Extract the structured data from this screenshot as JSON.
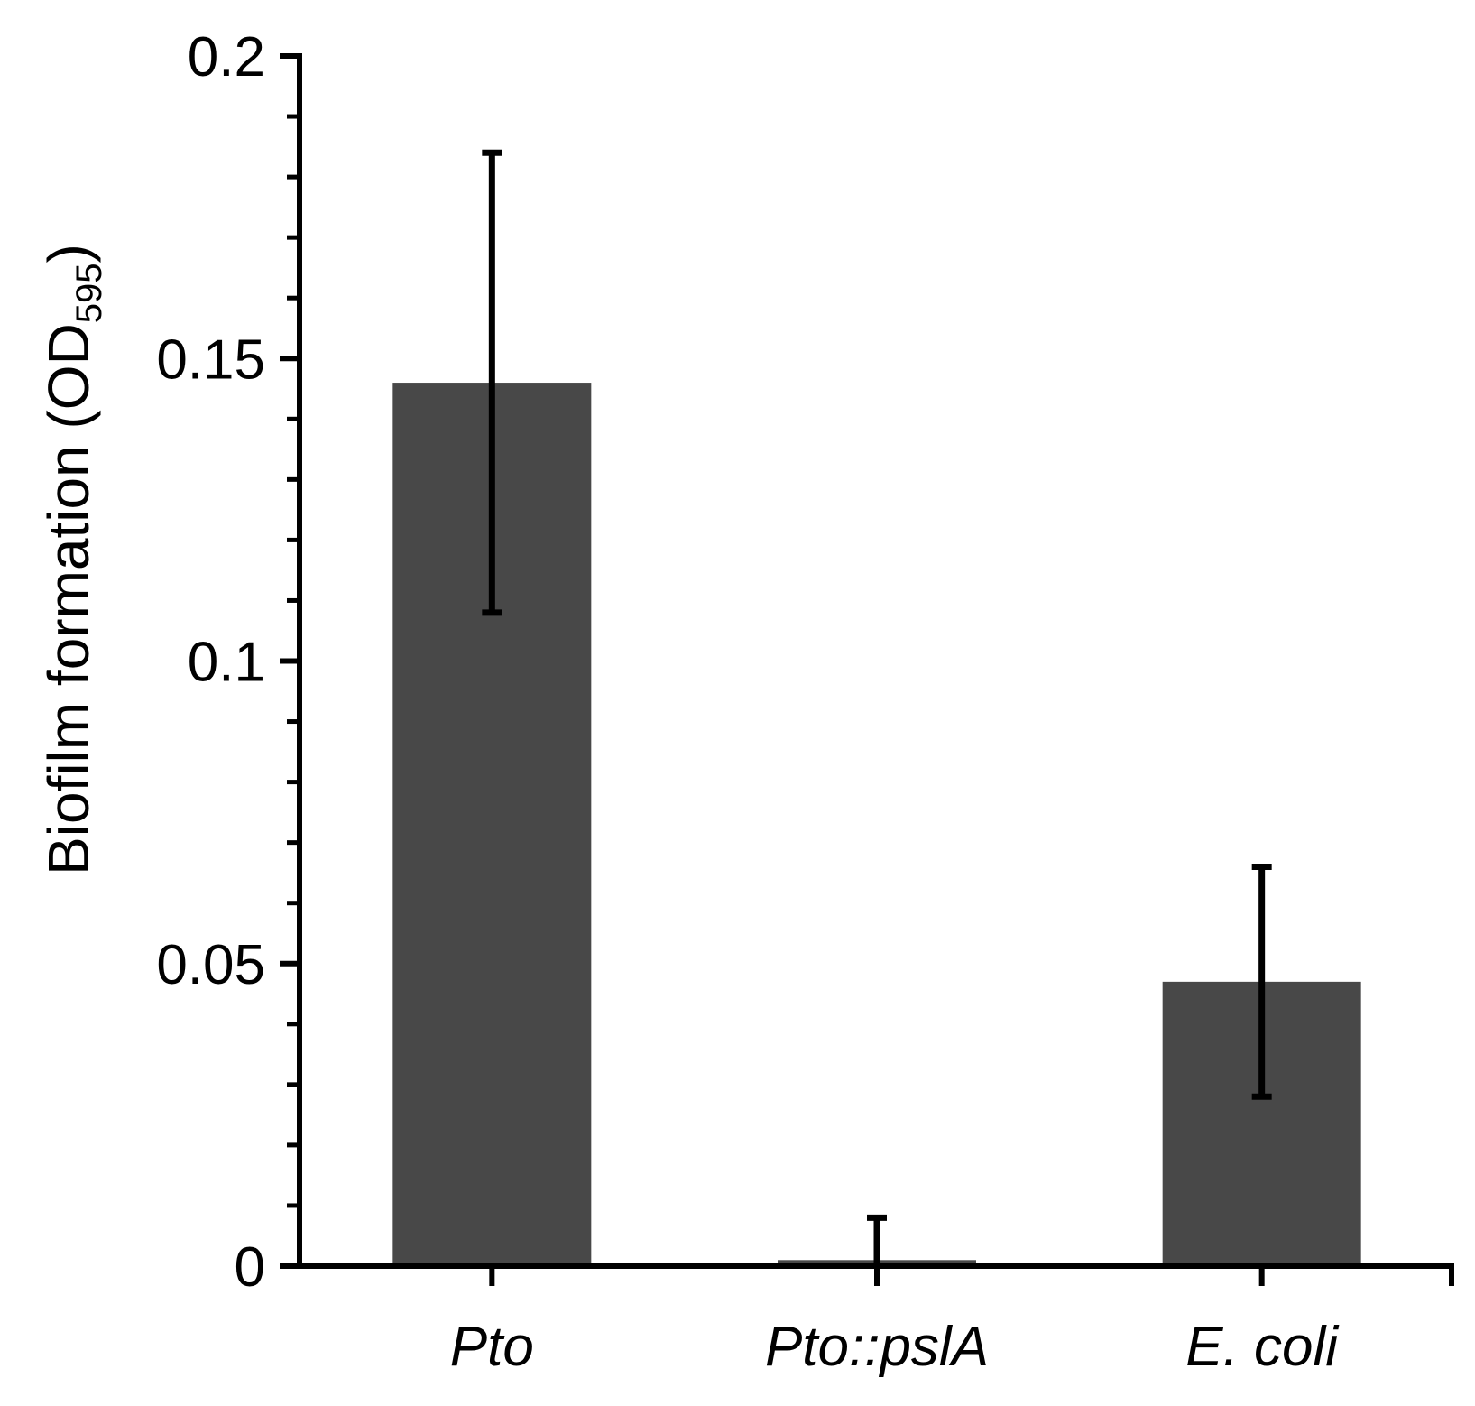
{
  "chart_data": {
    "type": "bar",
    "title": "",
    "xlabel": "",
    "ylabel": "Biofilm formation (OD",
    "ylabel_subscript": "595",
    "ylabel_close": ")",
    "categories": [
      "Pto",
      "Pto::pslA",
      "E. coli"
    ],
    "values": [
      0.146,
      0.001,
      0.047
    ],
    "error_low": [
      0.108,
      0.0,
      0.028
    ],
    "error_high": [
      0.184,
      0.008,
      0.066
    ],
    "ylim": [
      0,
      0.2
    ],
    "yticks": [
      0,
      0.05,
      0.1,
      0.15,
      0.2
    ],
    "ytick_labels": [
      "0",
      "0.05",
      "0.1",
      "0.15",
      "0.2"
    ],
    "minor_tick_step": 0.01,
    "grid": false,
    "bar_color": "#484848",
    "axis_color": "#000000"
  }
}
